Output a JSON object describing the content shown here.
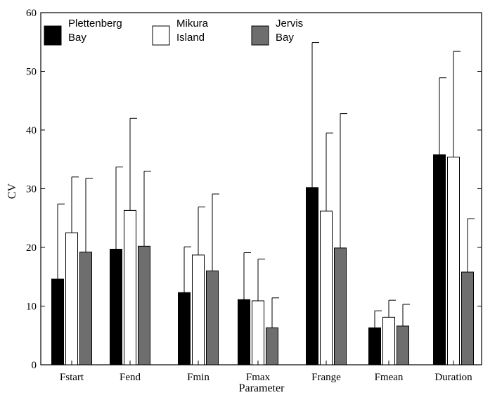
{
  "chart_data": {
    "type": "bar",
    "xlabel": "Parameter",
    "ylabel": "CV",
    "ylim": [
      0,
      60
    ],
    "yticks": [
      0,
      10,
      20,
      30,
      40,
      50,
      60
    ],
    "categories": [
      "Fstart",
      "Fend",
      "Fmin",
      "Fmax",
      "Frange",
      "Fmean",
      "Duration"
    ],
    "series": [
      {
        "name": "Plettenberg Bay",
        "name_lines": [
          "Plettenberg",
          "Bay"
        ],
        "color": "#000000",
        "values": [
          14.6,
          19.7,
          12.3,
          11.1,
          30.2,
          6.3,
          35.8
        ],
        "error": [
          12.8,
          14.0,
          7.8,
          8.0,
          24.7,
          2.9,
          13.1
        ]
      },
      {
        "name": "Mikura Island",
        "name_lines": [
          "Mikura",
          "Island"
        ],
        "color": "#ffffff",
        "values": [
          22.5,
          26.3,
          18.7,
          10.9,
          26.2,
          8.1,
          35.4
        ],
        "error": [
          9.5,
          15.7,
          8.2,
          7.1,
          13.3,
          2.9,
          18.0
        ]
      },
      {
        "name": "Jervis Bay",
        "name_lines": [
          "Jervis",
          "Bay"
        ],
        "color": "#6e6e6e",
        "values": [
          19.2,
          20.2,
          16.0,
          6.3,
          19.9,
          6.6,
          15.8
        ],
        "error": [
          12.6,
          12.8,
          13.1,
          5.1,
          22.9,
          3.7,
          9.1
        ]
      }
    ],
    "grid": false,
    "legend_position": "top"
  }
}
